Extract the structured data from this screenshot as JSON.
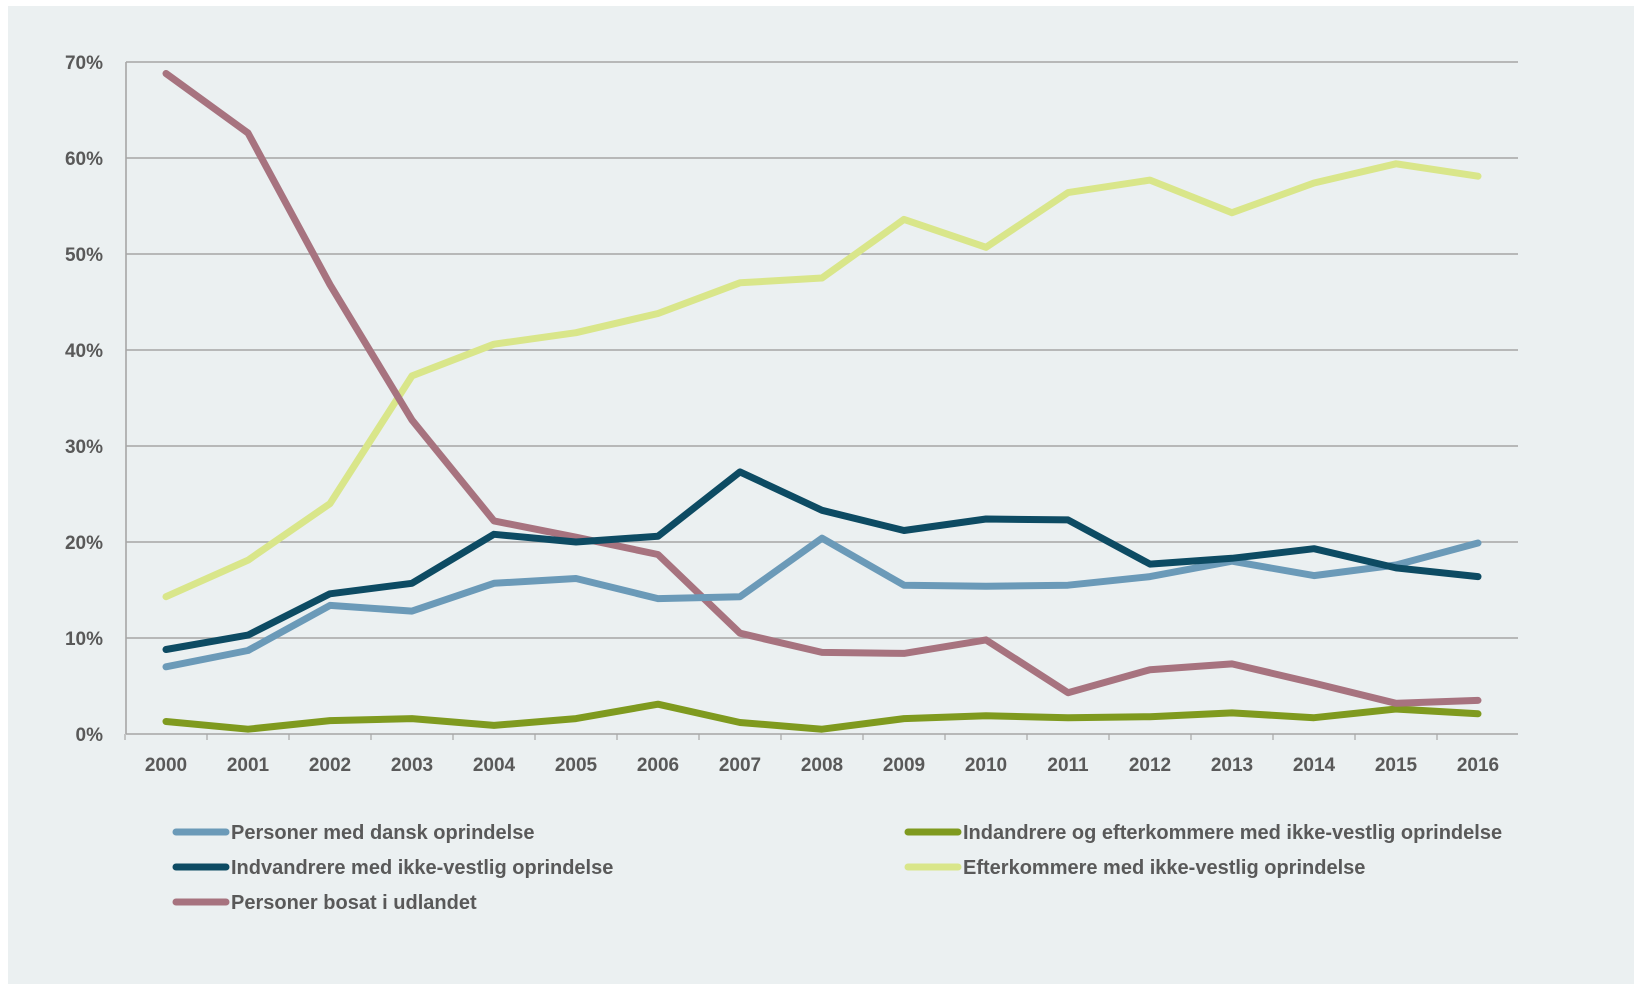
{
  "chart_data": {
    "type": "line",
    "title": "",
    "xlabel": "",
    "ylabel": "",
    "ylim": [
      0,
      70
    ],
    "y_ticks": [
      "0%",
      "10%",
      "20%",
      "30%",
      "40%",
      "50%",
      "60%",
      "70%"
    ],
    "grid": "horizontal",
    "legend_position": "bottom",
    "categories": [
      "2000",
      "2001",
      "2002",
      "2003",
      "2004",
      "2005",
      "2006",
      "2007",
      "2008",
      "2009",
      "2010",
      "2011",
      "2012",
      "2013",
      "2014",
      "2015",
      "2016"
    ],
    "series": [
      {
        "name": "Personer med dansk oprindelse",
        "color": "#6b9ab8",
        "values": [
          7.0,
          8.7,
          13.4,
          12.8,
          15.7,
          16.2,
          14.1,
          14.3,
          20.4,
          15.5,
          15.4,
          15.5,
          16.4,
          18.0,
          16.5,
          17.6,
          19.9
        ]
      },
      {
        "name": "Indvandrere med ikke-vestlig oprindelse",
        "color": "#0d4b63",
        "values": [
          8.8,
          10.3,
          14.6,
          15.7,
          20.8,
          20.0,
          20.6,
          27.3,
          23.3,
          21.2,
          22.4,
          22.3,
          17.7,
          18.3,
          19.3,
          17.3,
          16.4
        ]
      },
      {
        "name": "Personer bosat i udlandet",
        "color": "#a7737f",
        "values": [
          68.8,
          62.6,
          46.8,
          32.7,
          22.2,
          20.5,
          18.7,
          10.5,
          8.5,
          8.4,
          9.8,
          4.3,
          6.7,
          7.3,
          5.3,
          3.2,
          3.5
        ]
      },
      {
        "name": "Indandrere og efterkommere med ikke-vestlig oprindelse",
        "color": "#7f9a1f",
        "values": [
          1.3,
          0.5,
          1.4,
          1.6,
          0.9,
          1.6,
          3.1,
          1.2,
          0.5,
          1.6,
          1.9,
          1.7,
          1.8,
          2.2,
          1.7,
          2.6,
          2.1
        ]
      },
      {
        "name": "Efterkommere med ikke-vestlig oprindelse",
        "color": "#d9e68a",
        "values": [
          14.3,
          18.1,
          24.0,
          37.3,
          40.6,
          41.8,
          43.8,
          47.0,
          47.5,
          53.6,
          50.7,
          56.4,
          57.7,
          54.3,
          57.4,
          59.4,
          58.1
        ]
      }
    ],
    "legend_order": [
      0,
      3,
      1,
      4,
      2
    ]
  },
  "colors": {
    "background": "#ebf0f1",
    "gridline": "#a6a6a6",
    "text": "#595959"
  }
}
